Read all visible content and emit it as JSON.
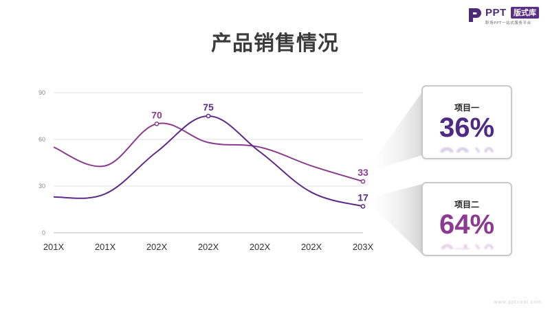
{
  "logo": {
    "brand": "PPT",
    "badge": "版式库",
    "tagline": "职场PPT一站式服务平台"
  },
  "title": "产品销售情况",
  "chart_data": {
    "type": "line",
    "title": "产品销售情况",
    "categories": [
      "201X",
      "201X",
      "202X",
      "202X",
      "202X",
      "202X",
      "203X"
    ],
    "ylim": [
      0,
      90
    ],
    "yticks": [
      0,
      30,
      60,
      90
    ],
    "grid": true,
    "series": [
      {
        "values": [
          55,
          43,
          70,
          58,
          55,
          43,
          33
        ],
        "color": "#8b3a8f",
        "end_label": "33"
      },
      {
        "values": [
          23,
          25,
          52,
          75,
          52,
          26,
          17
        ],
        "color": "#5b2a86",
        "end_label": "17"
      }
    ],
    "peak_labels": [
      {
        "series": 0,
        "index": 2,
        "text": "70"
      },
      {
        "series": 1,
        "index": 3,
        "text": "75"
      }
    ]
  },
  "cards": [
    {
      "label": "项目一",
      "value": "36%",
      "color": "#4e2a84"
    },
    {
      "label": "项目二",
      "value": "64%",
      "color": "#8b3a8f"
    }
  ],
  "footer": "www.pptcool.com"
}
